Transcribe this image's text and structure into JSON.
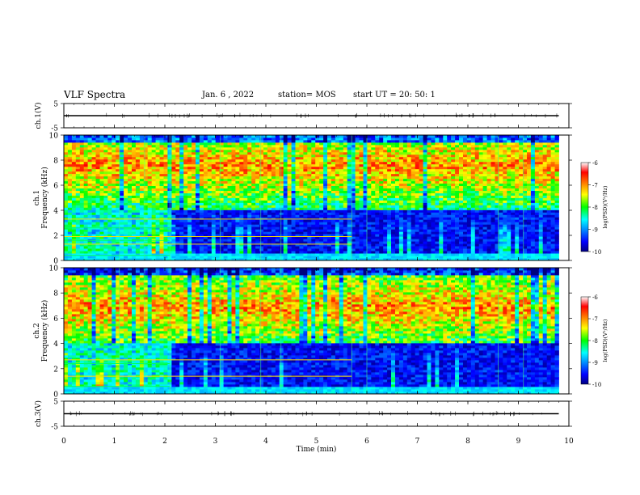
{
  "header": {
    "title": "VLF Spectra",
    "date": "Jan. 6 , 2022",
    "station": "station= MOS",
    "start": "start UT = 20: 50: 1"
  },
  "chart_data": [
    {
      "type": "line",
      "ylabel": "ch.1(V)",
      "ylim": [
        -5,
        5
      ],
      "yticks": [
        5,
        -5
      ],
      "series": [
        {
          "x": [
            0,
            9.8
          ],
          "y": [
            0,
            0
          ]
        }
      ]
    },
    {
      "type": "heatmap",
      "ylabel": "ch.1\nFrequency (kHz)",
      "xlim": [
        0,
        9.8
      ],
      "ylim": [
        0,
        10
      ],
      "yticks": [
        0,
        2,
        4,
        6,
        8,
        10
      ],
      "colorbar": {
        "label": "log(PSD)(V²/Hz)",
        "range": [
          -10,
          -6
        ],
        "ticks": [
          -6,
          -7,
          -8,
          -9,
          -10
        ]
      }
    },
    {
      "type": "heatmap",
      "ylabel": "ch.2\nFrequency (kHz)",
      "xlim": [
        0,
        9.8
      ],
      "ylim": [
        0,
        10
      ],
      "yticks": [
        0,
        2,
        4,
        6,
        8,
        10
      ],
      "colorbar": {
        "label": "log(PSD)(V²/Hz)",
        "range": [
          -10,
          -6
        ],
        "ticks": [
          -6,
          -7,
          -8,
          -9,
          -10
        ]
      }
    },
    {
      "type": "line",
      "ylabel": "ch.3(V)",
      "ylim": [
        -5,
        5
      ],
      "yticks": [
        5,
        -5
      ],
      "series": [
        {
          "x": [
            0,
            9.8
          ],
          "y": [
            0,
            0
          ]
        }
      ]
    }
  ],
  "xaxis": {
    "label": "Time (min)",
    "range": [
      0,
      10
    ],
    "ticks": [
      0,
      1,
      2,
      3,
      4,
      5,
      6,
      7,
      8,
      9,
      10
    ]
  }
}
